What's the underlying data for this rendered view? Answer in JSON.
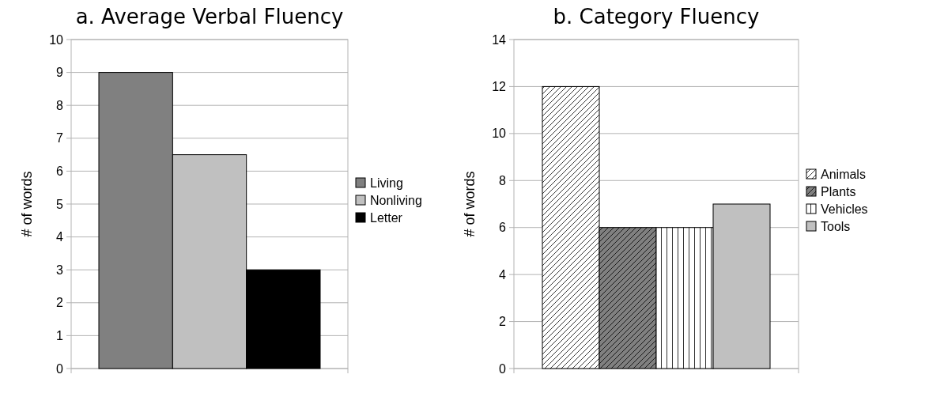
{
  "chart_data": [
    {
      "type": "bar",
      "title": "a. Average Verbal Fluency",
      "ylabel": "# of words",
      "categories": [
        null
      ],
      "ylim": [
        0,
        10
      ],
      "yticks": [
        0,
        1,
        2,
        3,
        4,
        5,
        6,
        7,
        8,
        9,
        10
      ],
      "grid": "y",
      "legend": "right",
      "series": [
        {
          "name": "Living",
          "color": "#808080",
          "values": [
            9
          ]
        },
        {
          "name": "Nonliving",
          "color": "#c0c0c0",
          "values": [
            6.5
          ]
        },
        {
          "name": "Letter",
          "color": "#000000",
          "values": [
            3
          ]
        }
      ]
    },
    {
      "type": "bar",
      "title": "b. Category Fluency",
      "ylabel": "# of words",
      "categories": [
        null
      ],
      "ylim": [
        0,
        14
      ],
      "yticks": [
        0,
        2,
        4,
        6,
        8,
        10,
        12,
        14
      ],
      "grid": "y",
      "legend": "right",
      "series": [
        {
          "name": "Animals",
          "color": "#ffffff",
          "values": [
            12
          ]
        },
        {
          "name": "Plants",
          "color": "#808080",
          "values": [
            6
          ]
        },
        {
          "name": "Vehicles",
          "color": "#ffffff",
          "values": [
            6
          ]
        },
        {
          "name": "Tools",
          "color": "#c0c0c0",
          "values": [
            7
          ]
        }
      ]
    }
  ]
}
